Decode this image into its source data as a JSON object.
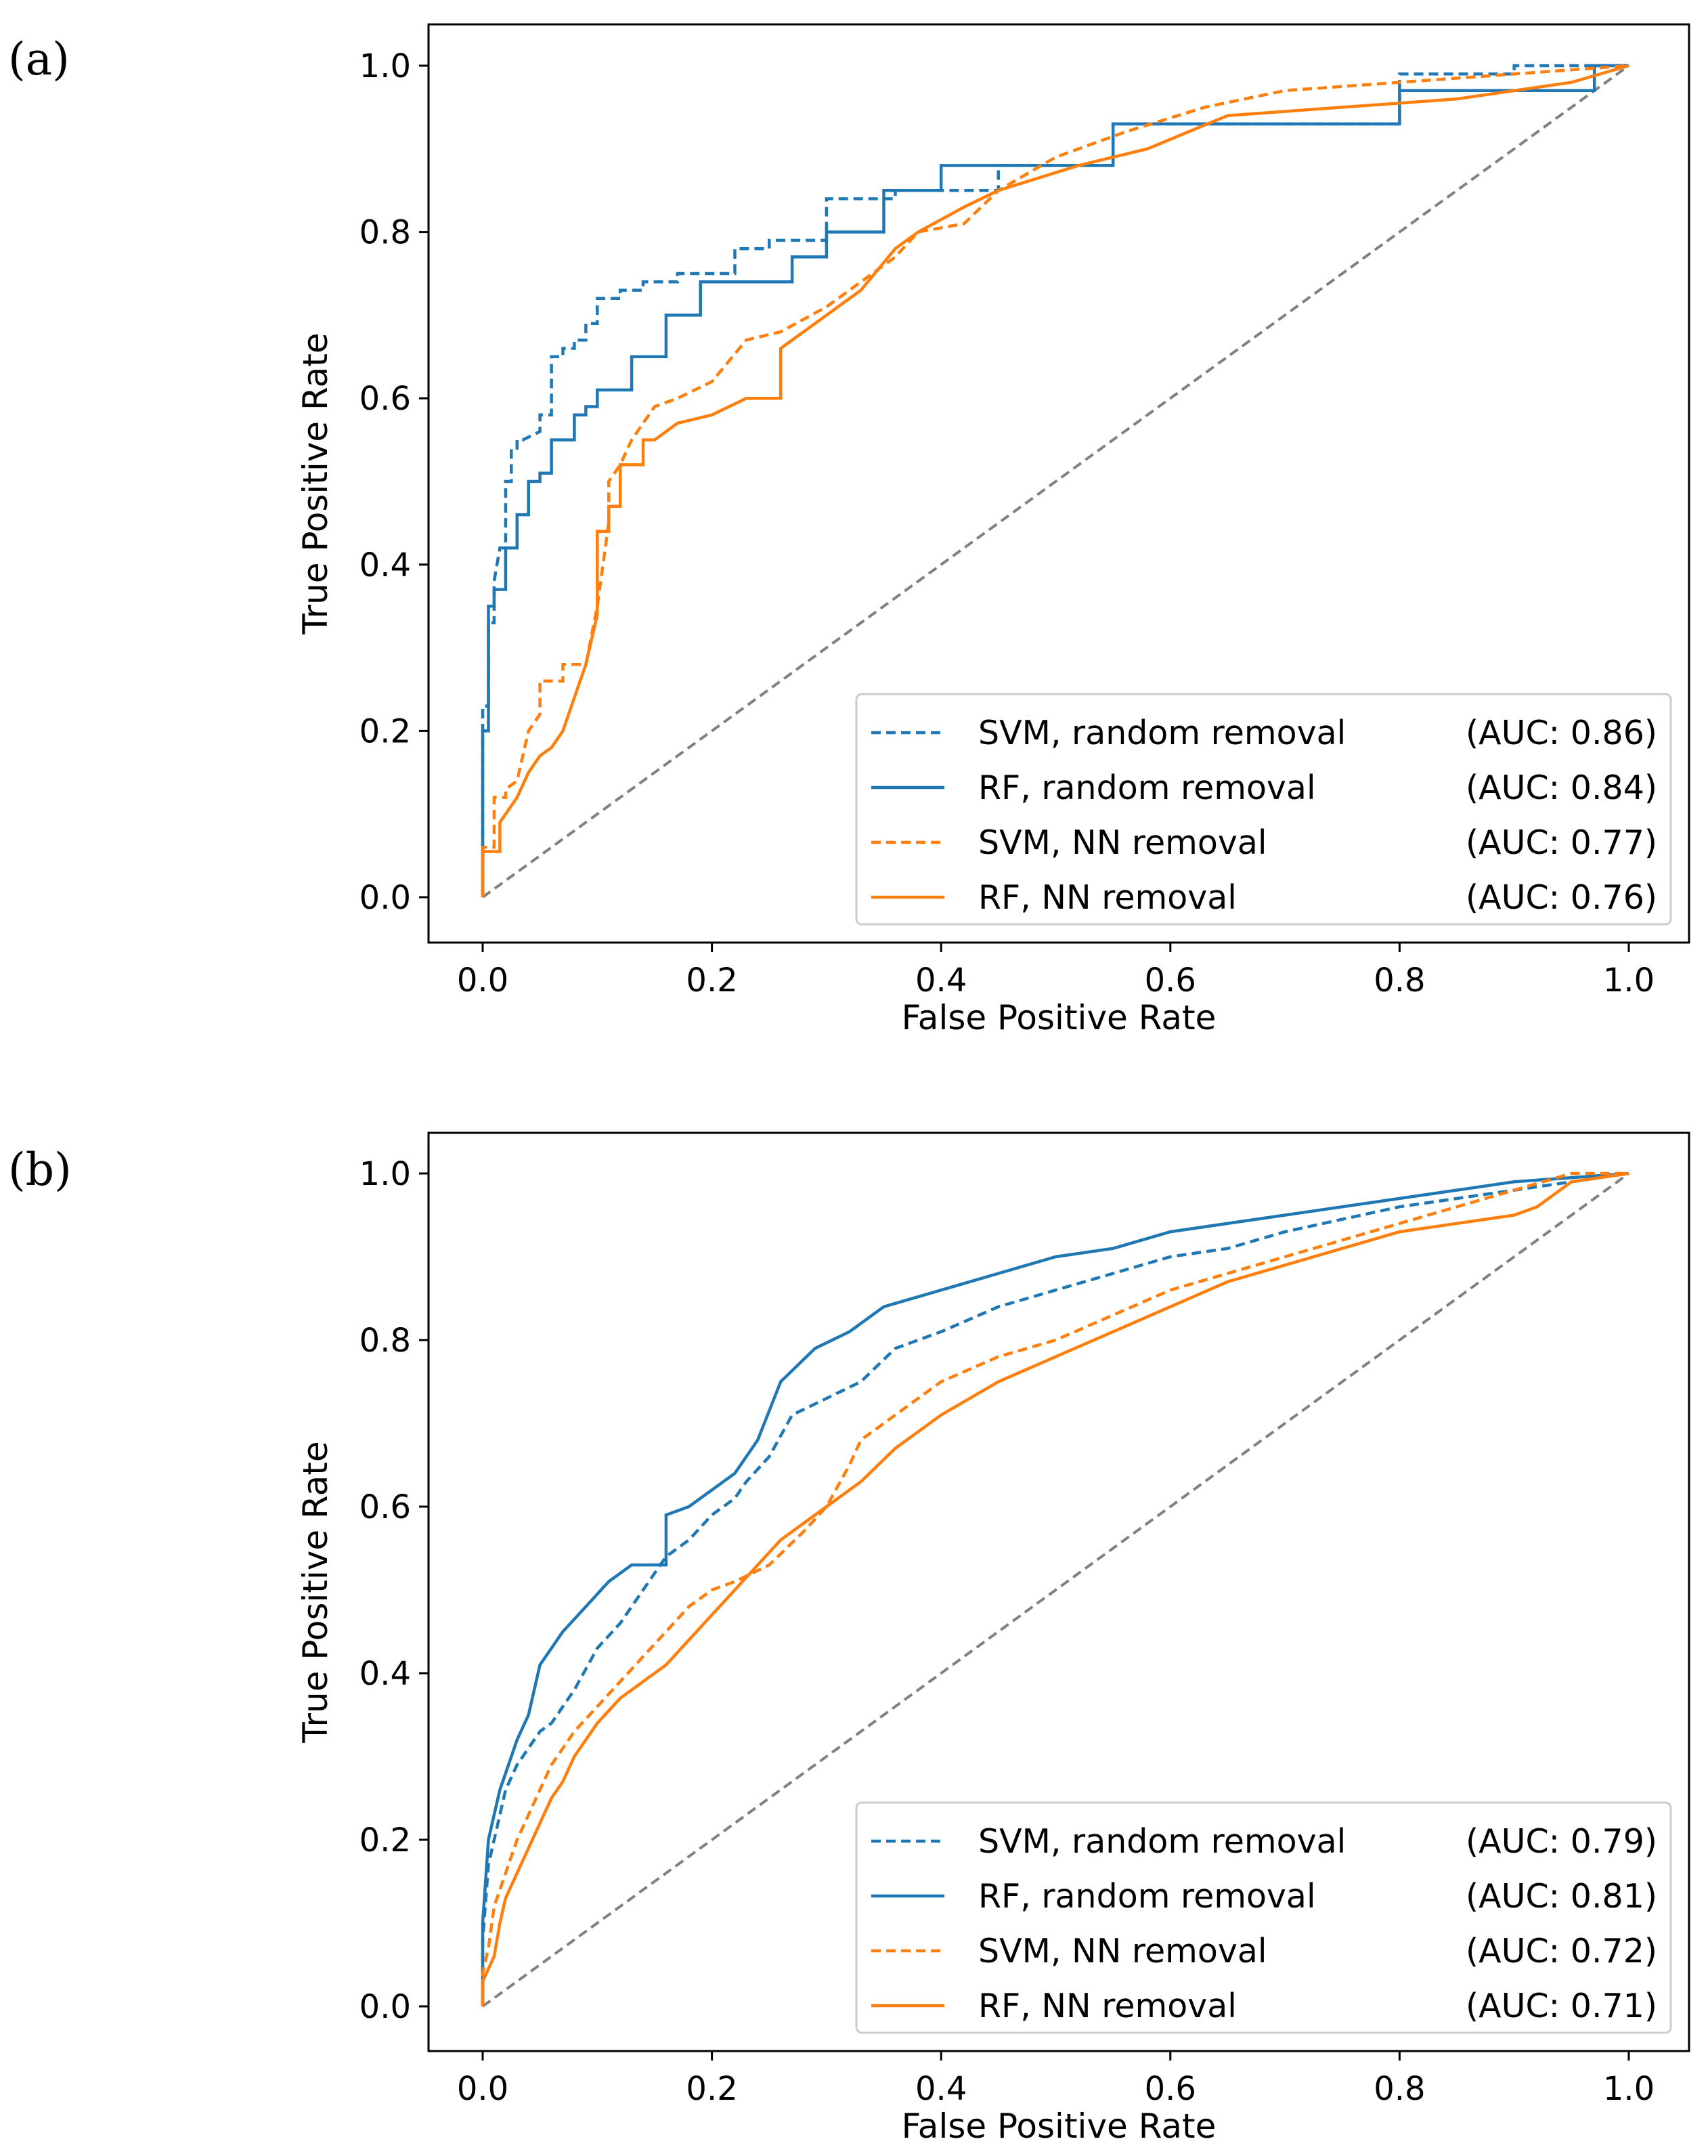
{
  "chart_data": [
    {
      "type": "line",
      "panel_label": "(a)",
      "xlabel": "False Positive Rate",
      "ylabel": "True Positive Rate",
      "xlim": [
        0,
        1
      ],
      "ylim": [
        0,
        1
      ],
      "xticks": [
        "0.0",
        "0.2",
        "0.4",
        "0.6",
        "0.8",
        "1.0"
      ],
      "yticks": [
        "0.0",
        "0.2",
        "0.4",
        "0.6",
        "0.8",
        "1.0"
      ],
      "legend_position": "lower-right",
      "reference_line": {
        "x": [
          0,
          1
        ],
        "y": [
          0,
          1
        ],
        "color": "#808080",
        "style": "dashed"
      },
      "series": [
        {
          "name": "SVM, random removal",
          "auc_label": "(AUC: 0.86)",
          "color": "#1f77b4",
          "style": "dashed",
          "x": [
            0,
            0,
            0.005,
            0.005,
            0.01,
            0.01,
            0.015,
            0.02,
            0.02,
            0.025,
            0.025,
            0.03,
            0.03,
            0.035,
            0.035,
            0.05,
            0.05,
            0.06,
            0.06,
            0.07,
            0.07,
            0.08,
            0.08,
            0.09,
            0.09,
            0.1,
            0.1,
            0.12,
            0.12,
            0.14,
            0.14,
            0.17,
            0.17,
            0.22,
            0.22,
            0.25,
            0.25,
            0.3,
            0.3,
            0.36,
            0.36,
            0.45,
            0.45,
            0.55,
            0.55,
            0.8,
            0.8,
            0.9,
            0.9,
            1
          ],
          "y": [
            0,
            0.23,
            0.23,
            0.33,
            0.33,
            0.38,
            0.42,
            0.42,
            0.5,
            0.5,
            0.54,
            0.54,
            0.55,
            0.55,
            0.55,
            0.56,
            0.58,
            0.58,
            0.65,
            0.65,
            0.66,
            0.66,
            0.67,
            0.67,
            0.69,
            0.69,
            0.72,
            0.72,
            0.73,
            0.73,
            0.74,
            0.74,
            0.75,
            0.75,
            0.78,
            0.78,
            0.79,
            0.79,
            0.84,
            0.84,
            0.85,
            0.85,
            0.88,
            0.88,
            0.93,
            0.93,
            0.99,
            0.99,
            1.0,
            1.0
          ]
        },
        {
          "name": "RF, random removal",
          "auc_label": "(AUC: 0.84)",
          "color": "#1f77b4",
          "style": "solid",
          "x": [
            0,
            0,
            0.005,
            0.005,
            0.01,
            0.01,
            0.02,
            0.02,
            0.03,
            0.03,
            0.04,
            0.04,
            0.05,
            0.05,
            0.06,
            0.06,
            0.08,
            0.08,
            0.09,
            0.09,
            0.1,
            0.1,
            0.13,
            0.13,
            0.16,
            0.16,
            0.19,
            0.19,
            0.27,
            0.27,
            0.3,
            0.3,
            0.35,
            0.35,
            0.4,
            0.4,
            0.55,
            0.55,
            0.8,
            0.8,
            0.97,
            0.97,
            1
          ],
          "y": [
            0,
            0.2,
            0.2,
            0.35,
            0.35,
            0.37,
            0.37,
            0.42,
            0.42,
            0.46,
            0.46,
            0.5,
            0.5,
            0.51,
            0.51,
            0.55,
            0.55,
            0.58,
            0.58,
            0.59,
            0.59,
            0.61,
            0.61,
            0.65,
            0.65,
            0.7,
            0.7,
            0.74,
            0.74,
            0.77,
            0.77,
            0.8,
            0.8,
            0.85,
            0.85,
            0.88,
            0.88,
            0.93,
            0.93,
            0.97,
            0.97,
            1.0,
            1.0
          ]
        },
        {
          "name": "SVM, NN removal",
          "auc_label": "(AUC: 0.77)",
          "color": "#ff7f0e",
          "style": "dashed",
          "x": [
            0,
            0,
            0.01,
            0.01,
            0.02,
            0.02,
            0.03,
            0.04,
            0.05,
            0.05,
            0.07,
            0.07,
            0.09,
            0.1,
            0.11,
            0.11,
            0.12,
            0.13,
            0.14,
            0.15,
            0.17,
            0.2,
            0.23,
            0.26,
            0.3,
            0.33,
            0.36,
            0.38,
            0.42,
            0.45,
            0.5,
            0.56,
            0.63,
            0.7,
            0.8,
            0.9,
            1
          ],
          "y": [
            0,
            0.06,
            0.06,
            0.12,
            0.12,
            0.13,
            0.14,
            0.2,
            0.22,
            0.26,
            0.26,
            0.28,
            0.28,
            0.35,
            0.45,
            0.5,
            0.52,
            0.55,
            0.57,
            0.59,
            0.6,
            0.62,
            0.67,
            0.68,
            0.71,
            0.74,
            0.77,
            0.8,
            0.81,
            0.85,
            0.89,
            0.92,
            0.95,
            0.97,
            0.98,
            0.99,
            1.0
          ]
        },
        {
          "name": "RF, NN removal",
          "auc_label": "(AUC: 0.76)",
          "color": "#ff7f0e",
          "style": "solid",
          "x": [
            0,
            0,
            0.015,
            0.015,
            0.03,
            0.04,
            0.05,
            0.06,
            0.07,
            0.08,
            0.09,
            0.1,
            0.1,
            0.11,
            0.11,
            0.12,
            0.12,
            0.14,
            0.14,
            0.15,
            0.17,
            0.2,
            0.23,
            0.26,
            0.26,
            0.3,
            0.33,
            0.36,
            0.38,
            0.42,
            0.45,
            0.52,
            0.58,
            0.65,
            0.75,
            0.85,
            0.95,
            1
          ],
          "y": [
            0,
            0.055,
            0.055,
            0.09,
            0.12,
            0.15,
            0.17,
            0.18,
            0.2,
            0.24,
            0.28,
            0.34,
            0.44,
            0.44,
            0.47,
            0.47,
            0.52,
            0.52,
            0.55,
            0.55,
            0.57,
            0.58,
            0.6,
            0.6,
            0.66,
            0.7,
            0.73,
            0.78,
            0.8,
            0.83,
            0.85,
            0.88,
            0.9,
            0.94,
            0.95,
            0.96,
            0.98,
            1.0
          ]
        }
      ]
    },
    {
      "type": "line",
      "panel_label": "(b)",
      "xlabel": "False Positive Rate",
      "ylabel": "True Positive Rate",
      "xlim": [
        0,
        1
      ],
      "ylim": [
        0,
        1
      ],
      "xticks": [
        "0.0",
        "0.2",
        "0.4",
        "0.6",
        "0.8",
        "1.0"
      ],
      "yticks": [
        "0.0",
        "0.2",
        "0.4",
        "0.6",
        "0.8",
        "1.0"
      ],
      "legend_position": "lower-right",
      "reference_line": {
        "x": [
          0,
          1
        ],
        "y": [
          0,
          1
        ],
        "color": "#808080",
        "style": "dashed"
      },
      "series": [
        {
          "name": "SVM, random removal",
          "auc_label": "(AUC: 0.79)",
          "color": "#1f77b4",
          "style": "dashed",
          "x": [
            0,
            0,
            0.005,
            0.01,
            0.015,
            0.02,
            0.03,
            0.04,
            0.05,
            0.06,
            0.07,
            0.08,
            0.1,
            0.12,
            0.14,
            0.16,
            0.18,
            0.2,
            0.22,
            0.23,
            0.25,
            0.27,
            0.3,
            0.33,
            0.36,
            0.4,
            0.45,
            0.5,
            0.55,
            0.6,
            0.65,
            0.7,
            0.8,
            0.9,
            1
          ],
          "y": [
            0,
            0.08,
            0.17,
            0.2,
            0.23,
            0.26,
            0.29,
            0.31,
            0.33,
            0.34,
            0.36,
            0.38,
            0.43,
            0.46,
            0.5,
            0.54,
            0.56,
            0.59,
            0.61,
            0.63,
            0.66,
            0.71,
            0.73,
            0.75,
            0.79,
            0.81,
            0.84,
            0.86,
            0.88,
            0.9,
            0.91,
            0.93,
            0.96,
            0.98,
            1.0
          ]
        },
        {
          "name": "RF, random removal",
          "auc_label": "(AUC: 0.81)",
          "color": "#1f77b4",
          "style": "solid",
          "x": [
            0,
            0,
            0.005,
            0.01,
            0.015,
            0.02,
            0.03,
            0.04,
            0.05,
            0.06,
            0.07,
            0.09,
            0.11,
            0.13,
            0.16,
            0.16,
            0.18,
            0.2,
            0.22,
            0.24,
            0.26,
            0.29,
            0.32,
            0.35,
            0.4,
            0.45,
            0.5,
            0.55,
            0.6,
            0.7,
            0.8,
            0.9,
            1
          ],
          "y": [
            0,
            0.1,
            0.2,
            0.23,
            0.26,
            0.28,
            0.32,
            0.35,
            0.41,
            0.43,
            0.45,
            0.48,
            0.51,
            0.53,
            0.53,
            0.59,
            0.6,
            0.62,
            0.64,
            0.68,
            0.75,
            0.79,
            0.81,
            0.84,
            0.86,
            0.88,
            0.9,
            0.91,
            0.93,
            0.95,
            0.97,
            0.99,
            1.0
          ]
        },
        {
          "name": "SVM, NN removal",
          "auc_label": "(AUC: 0.72)",
          "color": "#ff7f0e",
          "style": "dashed",
          "x": [
            0,
            0,
            0.005,
            0.01,
            0.02,
            0.03,
            0.04,
            0.05,
            0.06,
            0.08,
            0.1,
            0.12,
            0.14,
            0.16,
            0.18,
            0.2,
            0.22,
            0.25,
            0.28,
            0.3,
            0.32,
            0.33,
            0.36,
            0.4,
            0.45,
            0.5,
            0.55,
            0.6,
            0.65,
            0.7,
            0.75,
            0.8,
            0.85,
            0.9,
            0.95,
            1
          ],
          "y": [
            0,
            0.04,
            0.07,
            0.12,
            0.16,
            0.2,
            0.23,
            0.26,
            0.29,
            0.33,
            0.36,
            0.39,
            0.42,
            0.45,
            0.48,
            0.5,
            0.51,
            0.53,
            0.57,
            0.6,
            0.65,
            0.68,
            0.71,
            0.75,
            0.78,
            0.8,
            0.83,
            0.86,
            0.88,
            0.9,
            0.92,
            0.94,
            0.96,
            0.98,
            1.0,
            1.0
          ]
        },
        {
          "name": "RF, NN removal",
          "auc_label": "(AUC: 0.71)",
          "color": "#ff7f0e",
          "style": "solid",
          "x": [
            0,
            0,
            0.01,
            0.015,
            0.02,
            0.03,
            0.04,
            0.05,
            0.06,
            0.07,
            0.08,
            0.1,
            0.12,
            0.14,
            0.16,
            0.18,
            0.2,
            0.22,
            0.24,
            0.26,
            0.28,
            0.3,
            0.33,
            0.36,
            0.4,
            0.45,
            0.5,
            0.55,
            0.6,
            0.65,
            0.7,
            0.75,
            0.8,
            0.85,
            0.9,
            0.92,
            0.95,
            1
          ],
          "y": [
            0,
            0.03,
            0.06,
            0.1,
            0.13,
            0.16,
            0.19,
            0.22,
            0.25,
            0.27,
            0.3,
            0.34,
            0.37,
            0.39,
            0.41,
            0.44,
            0.47,
            0.5,
            0.53,
            0.56,
            0.58,
            0.6,
            0.63,
            0.67,
            0.71,
            0.75,
            0.78,
            0.81,
            0.84,
            0.87,
            0.89,
            0.91,
            0.93,
            0.94,
            0.95,
            0.96,
            0.99,
            1.0
          ]
        }
      ]
    }
  ]
}
